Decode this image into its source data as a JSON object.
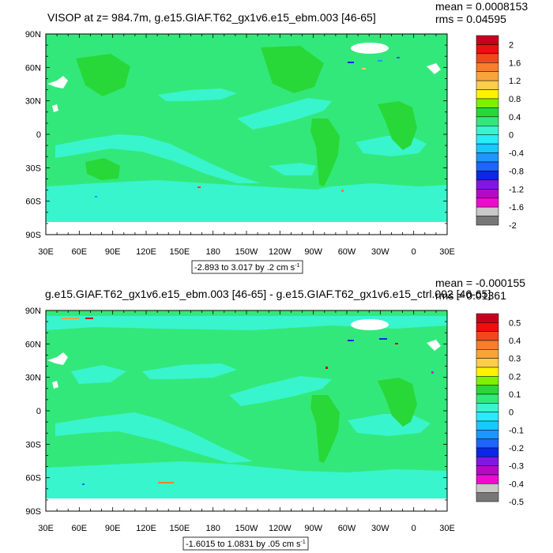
{
  "colors": {
    "ocean_main": "#33e87a",
    "ocean_low": "#38f5cd",
    "land": "#ffffff",
    "frame": "#000000"
  },
  "panels": [
    {
      "title": "VISOP at z= 984.7m, g.e15.GIAF.T62_gx1v6.e15_ebm.003 [46-65]",
      "mean": "mean = 0.0008153",
      "rms": "rms = 0.04595",
      "lat_labels": [
        "90N",
        "60N",
        "30N",
        "0",
        "30S",
        "60S",
        "90S"
      ],
      "lon_labels": [
        "30E",
        "60E",
        "90E",
        "120E",
        "150E",
        "180",
        "150W",
        "120W",
        "90W",
        "60W",
        "30W",
        "0",
        "30E"
      ],
      "range_label": "-2.893 to 3.017 by .2 cm s",
      "range_unit_sup": "-1",
      "colorbar": {
        "labels": [
          "2",
          "1.6",
          "1.2",
          "0.8",
          "0.4",
          "0",
          "-0.4",
          "-0.8",
          "-1.2",
          "-1.6",
          "-2"
        ],
        "colors": [
          "#c8001e",
          "#ee0e0e",
          "#f4461e",
          "#f67e2c",
          "#f7a43a",
          "#fbcd4a",
          "#fff200",
          "#7ef000",
          "#28d838",
          "#33e87a",
          "#38f5cd",
          "#28ecf8",
          "#18c8ff",
          "#1e96ff",
          "#1e64ff",
          "#0a28e6",
          "#7f18e6",
          "#b40ac8",
          "#f00acd",
          "#c8c8c8",
          "#777777"
        ]
      }
    },
    {
      "title": "g.e15.GIAF.T62_gx1v6.e15_ebm.003 [46-65] - g.e15.GIAF.T62_gx1v6.e15_ctrl.002 [46-65]",
      "mean": "mean = -0.000155",
      "rms": "rms = 0.01361",
      "lat_labels": [
        "90N",
        "60N",
        "30N",
        "0",
        "30S",
        "60S",
        "90S"
      ],
      "lon_labels": [
        "30E",
        "60E",
        "90E",
        "120E",
        "150E",
        "180",
        "150W",
        "120W",
        "90W",
        "60W",
        "30W",
        "0",
        "30E"
      ],
      "range_label": "-1.6015 to 1.0831 by .05 cm s",
      "range_unit_sup": "-1",
      "colorbar": {
        "labels": [
          "0.5",
          "0.4",
          "0.3",
          "0.2",
          "0.1",
          "0",
          "-0.1",
          "-0.2",
          "-0.3",
          "-0.4",
          "-0.5"
        ],
        "colors": [
          "#c8001e",
          "#ee0e0e",
          "#f4461e",
          "#f67e2c",
          "#f7a43a",
          "#fbcd4a",
          "#fff200",
          "#7ef000",
          "#28d838",
          "#33e87a",
          "#38f5cd",
          "#28ecf8",
          "#18c8ff",
          "#1e96ff",
          "#1e64ff",
          "#0a28e6",
          "#7f18e6",
          "#b40ac8",
          "#f00acd",
          "#c8c8c8",
          "#777777"
        ]
      }
    }
  ]
}
